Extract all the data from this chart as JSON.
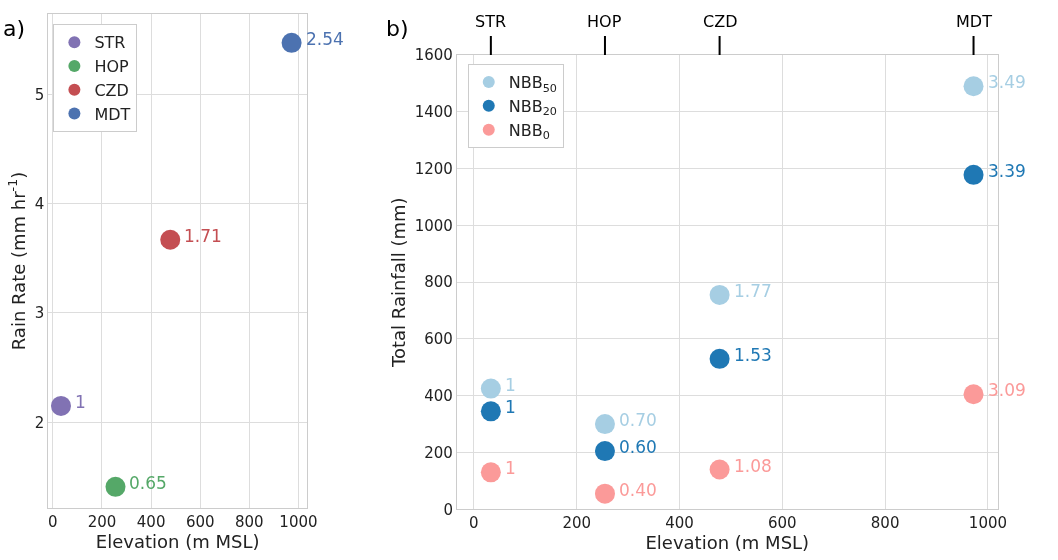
{
  "chart_data": [
    {
      "type": "scatter",
      "title": "a)",
      "xlabel": "Elevation (m MSL)",
      "ylabel": "Rain Rate (mm hr$^{-1}$)",
      "xlim": [
        -19,
        1035
      ],
      "xticks": [
        0,
        200,
        400,
        600,
        800,
        1000
      ],
      "ylim": [
        1.22,
        5.73
      ],
      "yticks": [
        2,
        3,
        4,
        5
      ],
      "grid": true,
      "legend": "top left",
      "marker": "circle",
      "series": [
        {
          "name": "STR",
          "color": "#8172b3",
          "x": [
            33
          ],
          "values": [
            2.15
          ]
        },
        {
          "name": "HOP",
          "color": "#55a868",
          "x": [
            255
          ],
          "values": [
            1.41
          ]
        },
        {
          "name": "CZD",
          "color": "#c44e52",
          "x": [
            478
          ],
          "values": [
            3.67
          ]
        },
        {
          "name": "MDT",
          "color": "#4c72b0",
          "x": [
            972
          ],
          "values": [
            5.47
          ]
        }
      ],
      "annotations": [
        {
          "text": "1",
          "x": 33,
          "y": 2.15
        },
        {
          "text": "0.65",
          "x": 255,
          "y": 1.41
        },
        {
          "text": "1.71",
          "x": 478,
          "y": 3.67
        },
        {
          "text": "2.54",
          "x": 972,
          "y": 5.47
        }
      ]
    },
    {
      "type": "scatter",
      "title": "b)",
      "xlabel": "Elevation (m MSL)",
      "ylabel": "Total Rainfall (mm)",
      "x": [
        33,
        255,
        478,
        972
      ],
      "xlim": [
        -33,
        1019
      ],
      "xticks": [
        0,
        200,
        400,
        600,
        800,
        1000
      ],
      "ylim": [
        0,
        1600
      ],
      "yticks": [
        0,
        200,
        400,
        600,
        800,
        1000,
        1200,
        1400,
        1600
      ],
      "grid": true,
      "legend": "top left",
      "marker": "circle",
      "series": [
        {
          "name": "NBB$_{50}$",
          "color": "#a6cee3",
          "values": [
            425,
            300,
            755,
            1490
          ]
        },
        {
          "name": "NBB$_{20}$",
          "color": "#1f78b4",
          "values": [
            345,
            205,
            530,
            1178
          ]
        },
        {
          "name": "NBB$_{0}$",
          "color": "#fb9a99",
          "values": [
            130,
            55,
            140,
            405
          ]
        }
      ],
      "annotations": [
        {
          "text": "STR",
          "x": 33
        },
        {
          "text": "HOP",
          "x": 255
        },
        {
          "text": "CZD",
          "x": 478
        },
        {
          "text": "MDT",
          "x": 972
        },
        {
          "text": "1",
          "x": 33,
          "y": 425
        },
        {
          "text": "0.70",
          "x": 255,
          "y": 300
        },
        {
          "text": "1.77",
          "x": 478,
          "y": 755
        },
        {
          "text": "3.49",
          "x": 972,
          "y": 1490
        },
        {
          "text": "1",
          "x": 33,
          "y": 345
        },
        {
          "text": "0.60",
          "x": 255,
          "y": 205
        },
        {
          "text": "1.53",
          "x": 478,
          "y": 530
        },
        {
          "text": "3.39",
          "x": 972,
          "y": 1178
        },
        {
          "text": "1",
          "x": 33,
          "y": 130
        },
        {
          "text": "0.40",
          "x": 255,
          "y": 55
        },
        {
          "text": "1.08",
          "x": 478,
          "y": 140
        },
        {
          "text": "3.09",
          "x": 972,
          "y": 405
        }
      ]
    }
  ]
}
